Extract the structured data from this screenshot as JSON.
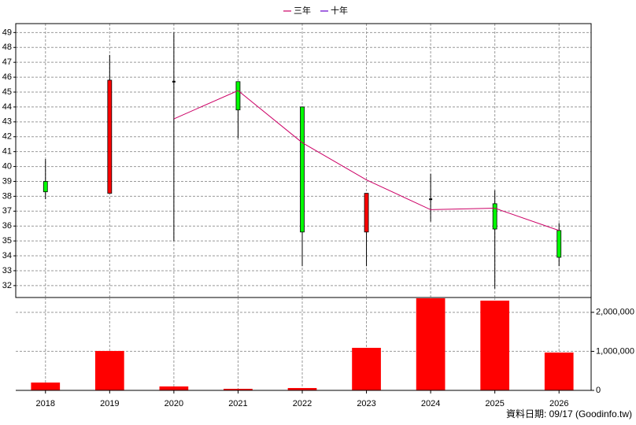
{
  "chart_data": [
    {
      "type": "candlestick",
      "categories": [
        "2018",
        "2019",
        "2020",
        "2021",
        "2022",
        "2023",
        "2024",
        "2025",
        "2026"
      ],
      "open": [
        39.0,
        38.2,
        45.7,
        45.7,
        44.0,
        35.6,
        37.8,
        37.5,
        35.7
      ],
      "high": [
        40.5,
        47.5,
        49.0,
        45.7,
        44.0,
        38.2,
        39.5,
        38.4,
        36.2
      ],
      "low": [
        37.8,
        38.2,
        35.0,
        41.9,
        33.3,
        33.3,
        36.3,
        31.8,
        33.3
      ],
      "close": [
        38.3,
        45.8,
        45.7,
        43.8,
        35.6,
        38.2,
        37.8,
        35.8,
        33.9
      ],
      "up_color": "#ff0000",
      "down_color": "#00ff00",
      "series": [
        {
          "name": "三年",
          "color": "#cc0066",
          "values": [
            null,
            null,
            43.2,
            45.1,
            41.6,
            39.1,
            37.1,
            37.2,
            35.7
          ]
        },
        {
          "name": "十年",
          "color": "#6600cc",
          "values": [
            null,
            null,
            null,
            null,
            null,
            null,
            null,
            null,
            null
          ]
        }
      ],
      "ylim": [
        31.2,
        49.6
      ],
      "yticks": [
        32,
        33,
        34,
        35,
        36,
        37,
        38,
        39,
        40,
        41,
        42,
        43,
        44,
        45,
        46,
        47,
        48,
        49
      ],
      "grid": true
    },
    {
      "type": "bar",
      "categories": [
        "2018",
        "2019",
        "2020",
        "2021",
        "2022",
        "2023",
        "2024",
        "2025",
        "2026"
      ],
      "values": [
        200000,
        1010000,
        100000,
        40000,
        60000,
        1090000,
        2360000,
        2300000,
        970000
      ],
      "color": "#ff0000",
      "ylim": [
        0,
        2380000
      ],
      "yticks": [
        0,
        {
          "value": 1000000,
          "label": "1,000,000"
        },
        {
          "value": 2000000,
          "label": "2,000,000"
        }
      ],
      "grid": true,
      "footnote": "資料日期: 09/17  (Goodinfo.tw)"
    }
  ]
}
